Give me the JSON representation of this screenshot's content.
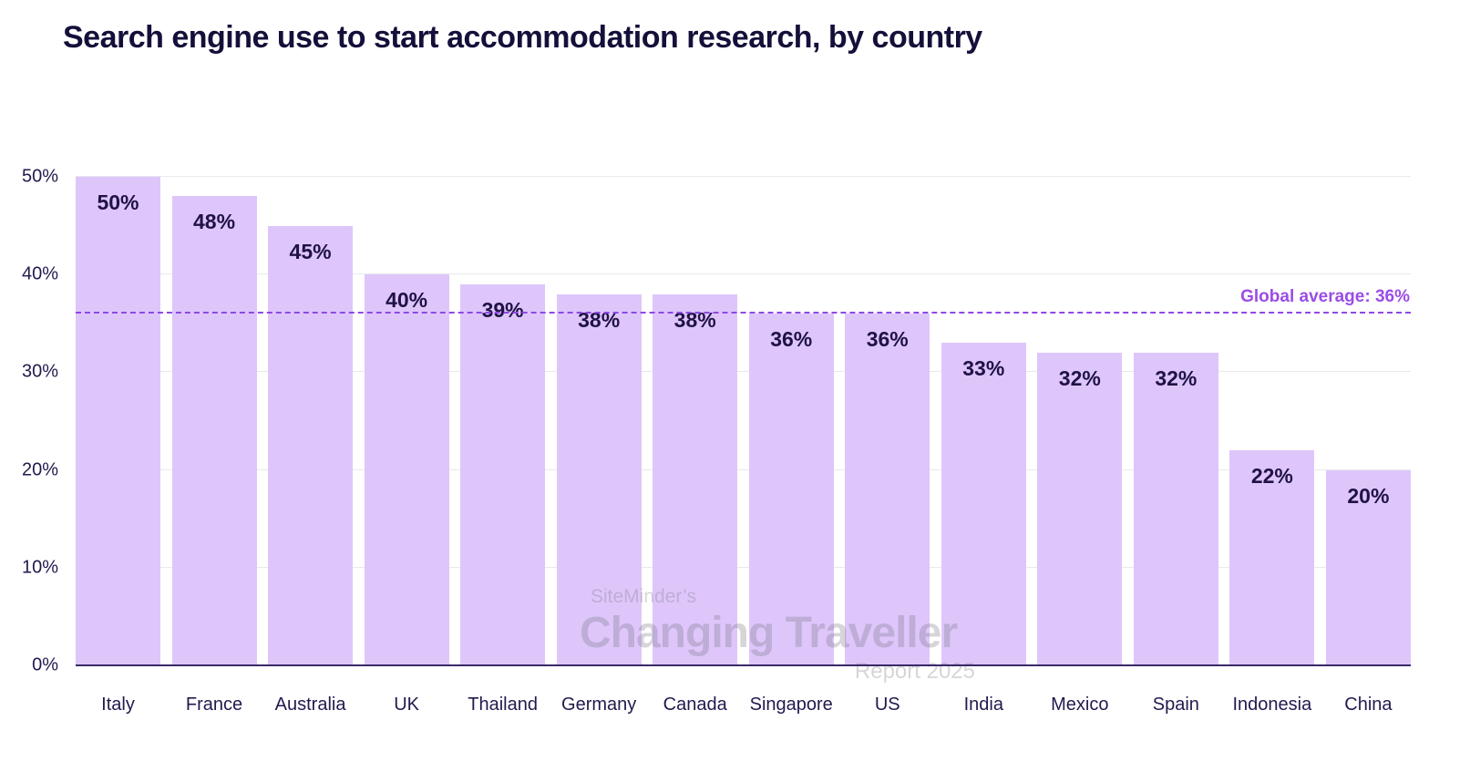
{
  "chart_data": {
    "type": "bar",
    "title": "Search engine use to start accommodation research, by country",
    "categories": [
      "Italy",
      "France",
      "Australia",
      "UK",
      "Thailand",
      "Germany",
      "Canada",
      "Singapore",
      "US",
      "India",
      "Mexico",
      "Spain",
      "Indonesia",
      "China"
    ],
    "values": [
      50,
      48,
      45,
      40,
      39,
      38,
      38,
      36,
      36,
      33,
      32,
      32,
      22,
      20
    ],
    "value_labels": [
      "50%",
      "48%",
      "45%",
      "40%",
      "39%",
      "38%",
      "38%",
      "36%",
      "36%",
      "33%",
      "32%",
      "32%",
      "22%",
      "20%"
    ],
    "xlabel": "",
    "ylabel": "",
    "ylim": [
      0,
      50
    ],
    "y_ticks": [
      "0%",
      "10%",
      "20%",
      "30%",
      "40%",
      "50%"
    ],
    "grid": "horizontal",
    "legend": "none",
    "bar_color": "#DEC6FB",
    "value_label_color": "#201245",
    "axis_text_color": "#23194E",
    "title_color": "#14103A",
    "baseline_color": "#392968",
    "gridline_color": "#E9E9EC",
    "average_line": {
      "value": 36,
      "label": "Global average: 36%",
      "color": "#8F49E3",
      "label_color": "#9B4DE6",
      "style": "dashed"
    }
  },
  "watermark": {
    "line1": "SiteMinder’s",
    "line2": "Changing Traveller",
    "line3": "Report 2025"
  }
}
